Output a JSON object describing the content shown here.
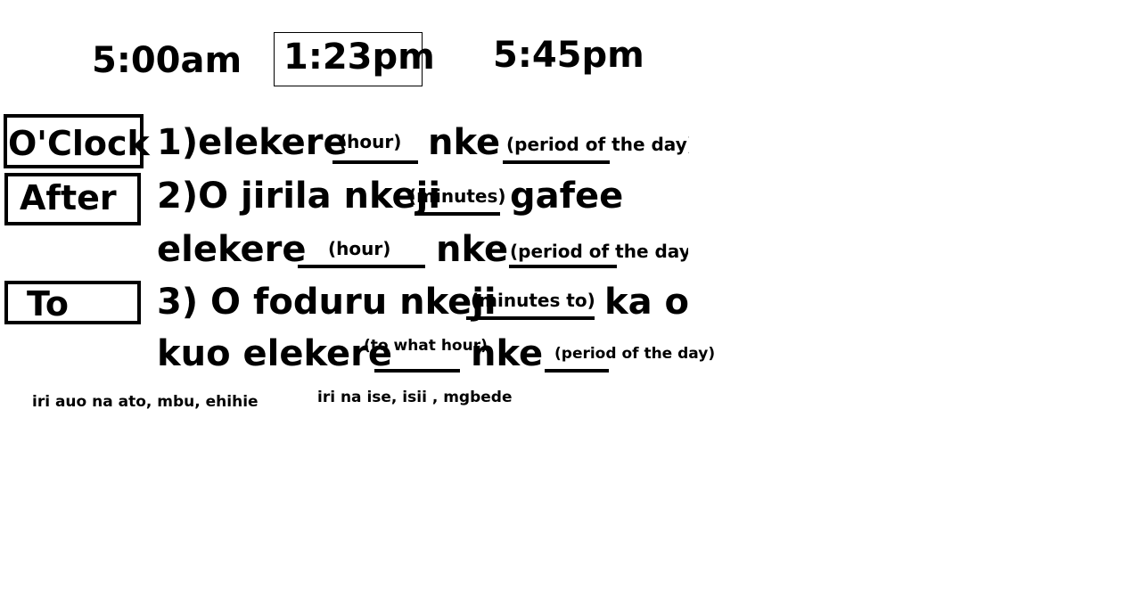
{
  "times": {
    "t1": "5:00am",
    "t2": "1:23pm",
    "t3": "5:45pm"
  },
  "labels": {
    "oclock": "O'Clock",
    "after": "After",
    "to": "To"
  },
  "line1": {
    "prefix": "1)elekere",
    "hour_hint": "(hour)",
    "middle": "nke",
    "period_hint": "(period of the day)"
  },
  "line2": {
    "prefix": "2)O jirila nkeji",
    "minutes_hint": "(minutes)",
    "suffix": "gafee"
  },
  "line3": {
    "prefix": "elekere",
    "hour_hint": "(hour)",
    "middle": "nke",
    "period_hint": "(period of the day)"
  },
  "line4": {
    "prefix": "3) O foduru nkeji",
    "minutes_hint": "(minutes to)",
    "suffix": "ka o e"
  },
  "line5": {
    "prefix": "kuo elekere",
    "hour_hint": "(to what hour)",
    "middle": "nke",
    "period_hint": "(period of the day)"
  },
  "notes": {
    "left": "iri auo na ato, mbu, ehihie",
    "right": "iri na ise, isii , mgbede"
  }
}
